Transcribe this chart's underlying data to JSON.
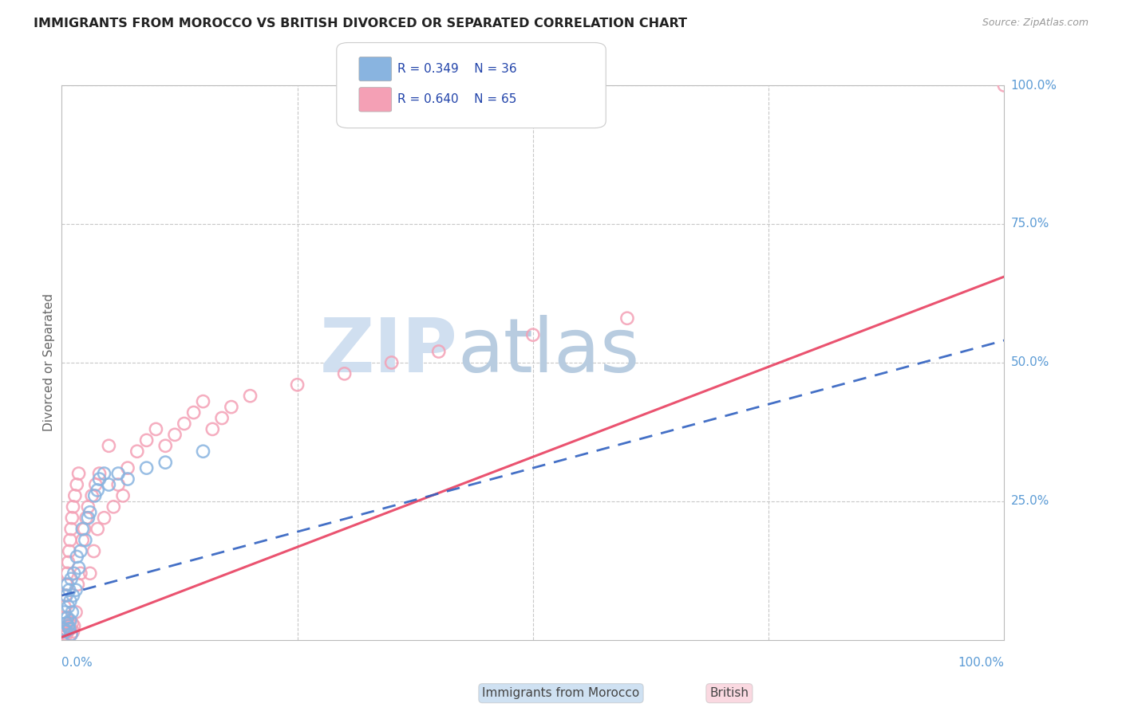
{
  "title": "IMMIGRANTS FROM MOROCCO VS BRITISH DIVORCED OR SEPARATED CORRELATION CHART",
  "source": "Source: ZipAtlas.com",
  "ylabel": "Divorced or Separated",
  "legend_blue_R": "R = 0.349",
  "legend_blue_N": "N = 36",
  "legend_pink_R": "R = 0.640",
  "legend_pink_N": "N = 65",
  "blue_color": "#89b4e0",
  "pink_color": "#f4a0b5",
  "blue_line_color": "#3060c0",
  "pink_line_color": "#e84060",
  "bg_color": "#ffffff",
  "grid_color": "#c8c8c8",
  "title_color": "#222222",
  "axis_label_color": "#5b9bd5",
  "watermark_zip_color": "#d0dff0",
  "watermark_atlas_color": "#b8cce0",
  "blue_scatter_x": [
    0.002,
    0.003,
    0.004,
    0.005,
    0.005,
    0.006,
    0.006,
    0.007,
    0.007,
    0.008,
    0.008,
    0.009,
    0.009,
    0.01,
    0.01,
    0.011,
    0.012,
    0.013,
    0.015,
    0.016,
    0.018,
    0.02,
    0.022,
    0.025,
    0.028,
    0.03,
    0.035,
    0.038,
    0.04,
    0.045,
    0.05,
    0.06,
    0.07,
    0.09,
    0.11,
    0.15
  ],
  "blue_scatter_y": [
    0.02,
    0.05,
    0.015,
    0.03,
    0.08,
    0.04,
    0.1,
    0.025,
    0.06,
    0.02,
    0.09,
    0.035,
    0.07,
    0.01,
    0.11,
    0.05,
    0.08,
    0.12,
    0.09,
    0.15,
    0.13,
    0.16,
    0.2,
    0.18,
    0.22,
    0.23,
    0.26,
    0.27,
    0.29,
    0.3,
    0.28,
    0.3,
    0.29,
    0.31,
    0.32,
    0.34
  ],
  "pink_scatter_x": [
    0.001,
    0.002,
    0.002,
    0.003,
    0.003,
    0.004,
    0.004,
    0.005,
    0.005,
    0.006,
    0.006,
    0.007,
    0.007,
    0.008,
    0.008,
    0.009,
    0.009,
    0.01,
    0.01,
    0.011,
    0.011,
    0.012,
    0.012,
    0.013,
    0.014,
    0.015,
    0.016,
    0.017,
    0.018,
    0.02,
    0.022,
    0.024,
    0.026,
    0.028,
    0.03,
    0.032,
    0.034,
    0.036,
    0.038,
    0.04,
    0.045,
    0.05,
    0.055,
    0.06,
    0.065,
    0.07,
    0.08,
    0.09,
    0.1,
    0.11,
    0.12,
    0.13,
    0.14,
    0.15,
    0.16,
    0.17,
    0.18,
    0.2,
    0.25,
    0.3,
    0.35,
    0.4,
    0.5,
    0.6,
    1.0
  ],
  "pink_scatter_y": [
    0.005,
    0.01,
    0.04,
    0.015,
    0.06,
    0.02,
    0.08,
    0.01,
    0.1,
    0.015,
    0.12,
    0.025,
    0.14,
    0.03,
    0.16,
    0.02,
    0.18,
    0.01,
    0.2,
    0.03,
    0.22,
    0.015,
    0.24,
    0.025,
    0.26,
    0.05,
    0.28,
    0.1,
    0.3,
    0.12,
    0.18,
    0.2,
    0.22,
    0.24,
    0.12,
    0.26,
    0.16,
    0.28,
    0.2,
    0.3,
    0.22,
    0.35,
    0.24,
    0.28,
    0.26,
    0.31,
    0.34,
    0.36,
    0.38,
    0.35,
    0.37,
    0.39,
    0.41,
    0.43,
    0.38,
    0.4,
    0.42,
    0.44,
    0.46,
    0.48,
    0.5,
    0.52,
    0.55,
    0.58,
    1.0
  ],
  "blue_line_intercept": 0.08,
  "blue_line_slope": 0.46,
  "pink_line_intercept": 0.005,
  "pink_line_slope": 0.65,
  "scatter_size": 120,
  "scatter_linewidth": 1.8
}
